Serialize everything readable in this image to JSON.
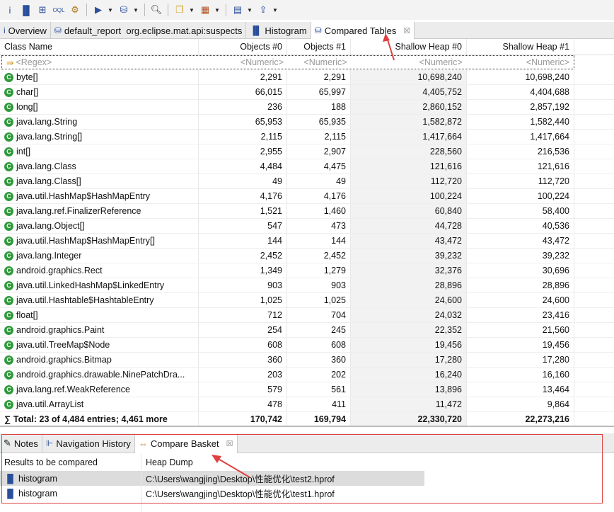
{
  "toolbar": {
    "icons": [
      "info-icon",
      "histogram-icon",
      "dominator-tree-icon",
      "oql-icon",
      "settings-icon",
      "run-report-icon",
      "heap-dump-icon",
      "search-icon",
      "group-icon",
      "columns-icon",
      "calculator-icon",
      "export-icon"
    ]
  },
  "tabs": [
    {
      "label": "Overview",
      "icon": "info-icon"
    },
    {
      "label": "default_report  org.eclipse.mat.api:suspects",
      "icon": "heap-dump-icon"
    },
    {
      "label": "Histogram",
      "icon": "histogram-icon"
    },
    {
      "label": "Compared Tables",
      "icon": "heap-dump-icon",
      "active": true
    }
  ],
  "table": {
    "columns": [
      "Class Name",
      "Objects #0",
      "Objects #1",
      "Shallow Heap #0",
      "Shallow Heap #1"
    ],
    "filter": [
      "<Regex>",
      "<Numeric>",
      "<Numeric>",
      "<Numeric>",
      "<Numeric>"
    ],
    "rows": [
      [
        "byte[]",
        "2,291",
        "2,291",
        "10,698,240",
        "10,698,240"
      ],
      [
        "char[]",
        "66,015",
        "65,997",
        "4,405,752",
        "4,404,688"
      ],
      [
        "long[]",
        "236",
        "188",
        "2,860,152",
        "2,857,192"
      ],
      [
        "java.lang.String",
        "65,953",
        "65,935",
        "1,582,872",
        "1,582,440"
      ],
      [
        "java.lang.String[]",
        "2,115",
        "2,115",
        "1,417,664",
        "1,417,664"
      ],
      [
        "int[]",
        "2,955",
        "2,907",
        "228,560",
        "216,536"
      ],
      [
        "java.lang.Class",
        "4,484",
        "4,475",
        "121,616",
        "121,616"
      ],
      [
        "java.lang.Class[]",
        "49",
        "49",
        "112,720",
        "112,720"
      ],
      [
        "java.util.HashMap$HashMapEntry",
        "4,176",
        "4,176",
        "100,224",
        "100,224"
      ],
      [
        "java.lang.ref.FinalizerReference",
        "1,521",
        "1,460",
        "60,840",
        "58,400"
      ],
      [
        "java.lang.Object[]",
        "547",
        "473",
        "44,728",
        "40,536"
      ],
      [
        "java.util.HashMap$HashMapEntry[]",
        "144",
        "144",
        "43,472",
        "43,472"
      ],
      [
        "java.lang.Integer",
        "2,452",
        "2,452",
        "39,232",
        "39,232"
      ],
      [
        "android.graphics.Rect",
        "1,349",
        "1,279",
        "32,376",
        "30,696"
      ],
      [
        "java.util.LinkedHashMap$LinkedEntry",
        "903",
        "903",
        "28,896",
        "28,896"
      ],
      [
        "java.util.Hashtable$HashtableEntry",
        "1,025",
        "1,025",
        "24,600",
        "24,600"
      ],
      [
        "float[]",
        "712",
        "704",
        "24,032",
        "23,416"
      ],
      [
        "android.graphics.Paint",
        "254",
        "245",
        "22,352",
        "21,560"
      ],
      [
        "java.util.TreeMap$Node",
        "608",
        "608",
        "19,456",
        "19,456"
      ],
      [
        "android.graphics.Bitmap",
        "360",
        "360",
        "17,280",
        "17,280"
      ],
      [
        "android.graphics.drawable.NinePatchDra...",
        "203",
        "202",
        "16,240",
        "16,160"
      ],
      [
        "java.lang.ref.WeakReference",
        "579",
        "561",
        "13,896",
        "13,464"
      ],
      [
        "java.util.ArrayList",
        "478",
        "411",
        "11,472",
        "9,864"
      ]
    ],
    "total": [
      "Total: 23 of 4,484 entries; 4,461 more",
      "170,742",
      "169,794",
      "22,330,720",
      "22,273,216"
    ]
  },
  "bottom": {
    "tabs": [
      {
        "label": "Notes",
        "icon": "notes-icon"
      },
      {
        "label": "Navigation History",
        "icon": "navigation-history-icon"
      },
      {
        "label": "Compare Basket",
        "icon": "compare-basket-icon",
        "active": true
      }
    ],
    "columns": [
      "Results to be compared",
      "Heap Dump"
    ],
    "rows": [
      [
        "histogram",
        "C:\\Users\\wangjing\\Desktop\\性能优化\\test2.hprof"
      ],
      [
        "histogram",
        "C:\\Users\\wangjing\\Desktop\\性能优化\\test1.hprof"
      ]
    ]
  },
  "colors": {
    "annotation": "#e04040",
    "class_icon": "#2e9a3a"
  }
}
